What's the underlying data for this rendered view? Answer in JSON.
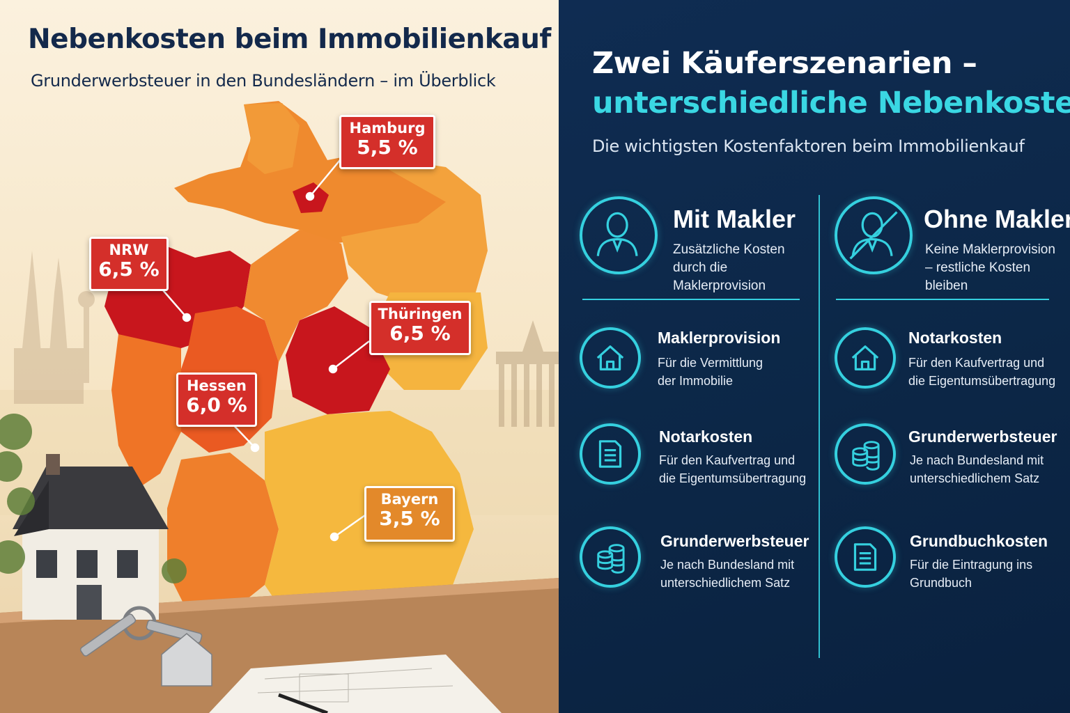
{
  "left": {
    "title": "Nebenkosten beim Immobilienkauf",
    "subtitle": "Grunderwerbsteuer in den Bundesländern – im Überblick",
    "badges": [
      {
        "name": "Hamburg",
        "value": "5,5 %"
      },
      {
        "name": "NRW",
        "value": "6,5 %"
      },
      {
        "name": "Thüringen",
        "value": "6,5 %"
      },
      {
        "name": "Hessen",
        "value": "6,0 %"
      },
      {
        "name": "Bayern",
        "value": "3,5 %"
      }
    ]
  },
  "right": {
    "title_line1": "Zwei Käuferszenarien –",
    "title_line2": "unterschiedliche Nebenkosten",
    "subtitle": "Die wichtigsten Kostenfaktoren beim Immobilienkauf",
    "scenarios": [
      {
        "title": "Mit Makler",
        "description": "Zusätzliche Kosten durch die Maklerprovision",
        "icon": "person-icon",
        "items": [
          {
            "title": "Maklerprovision",
            "description": "Für die Vermittlung der Immobilie",
            "icon": "house-icon"
          },
          {
            "title": "Notarkosten",
            "description": "Für den Kaufvertrag und die Eigentumsübertragung",
            "icon": "document-icon"
          },
          {
            "title": "Grunderwerbsteuer",
            "description": "Je nach Bundesland mit unterschiedlichem Satz",
            "icon": "coins-icon"
          }
        ]
      },
      {
        "title": "Ohne Makler",
        "description": "Keine Maklerprovision – restliche Kosten bleiben",
        "icon": "person-crossed-icon",
        "items": [
          {
            "title": "Notarkosten",
            "description": "Für den Kaufvertrag und die Eigentumsübertragung",
            "icon": "house-icon"
          },
          {
            "title": "Grunderwerbsteuer",
            "description": "Je nach Bundesland mit unterschiedlichem Satz",
            "icon": "coins-icon"
          },
          {
            "title": "Grundbuchkosten",
            "description": "Für die Eintragung ins Grundbuch",
            "icon": "document-icon"
          }
        ]
      }
    ],
    "accent_color": "#35d0df",
    "background_color": "#0f2c52"
  },
  "map_colors": {
    "high": "#c8161d",
    "mid": "#ea5a22",
    "low": "#f2a43a",
    "lowest": "#f5b83e"
  }
}
